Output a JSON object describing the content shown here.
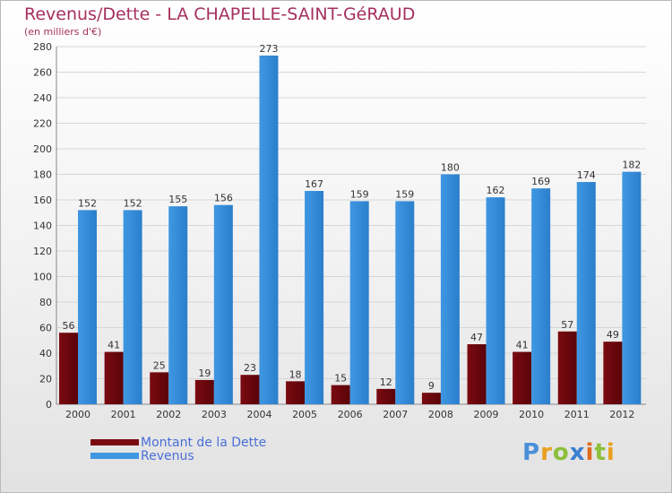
{
  "header": {
    "title": "Revenus/Dette - LA CHAPELLE-SAINT-GéRAUD",
    "subtitle": "(en milliers d'€)"
  },
  "chart_data": {
    "type": "bar",
    "categories": [
      "2000",
      "2001",
      "2002",
      "2003",
      "2004",
      "2005",
      "2006",
      "2007",
      "2008",
      "2009",
      "2010",
      "2011",
      "2012"
    ],
    "series": [
      {
        "name": "Montant de la Dette",
        "color": "#7a0a10",
        "values": [
          56,
          41,
          25,
          19,
          23,
          18,
          15,
          12,
          9,
          47,
          41,
          57,
          49
        ]
      },
      {
        "name": "Revenus",
        "color": "#3f97e2",
        "values": [
          152,
          152,
          155,
          156,
          273,
          167,
          159,
          159,
          180,
          162,
          169,
          174,
          182
        ]
      }
    ],
    "ylim": [
      0,
      280
    ],
    "yticks": [
      0,
      20,
      40,
      60,
      80,
      100,
      120,
      140,
      160,
      180,
      200,
      220,
      240,
      260,
      280
    ],
    "grid": true,
    "legend_position": "bottom-left"
  },
  "logo": {
    "letters": [
      "P",
      "r",
      "o",
      "x",
      "i",
      "t",
      "i"
    ]
  }
}
